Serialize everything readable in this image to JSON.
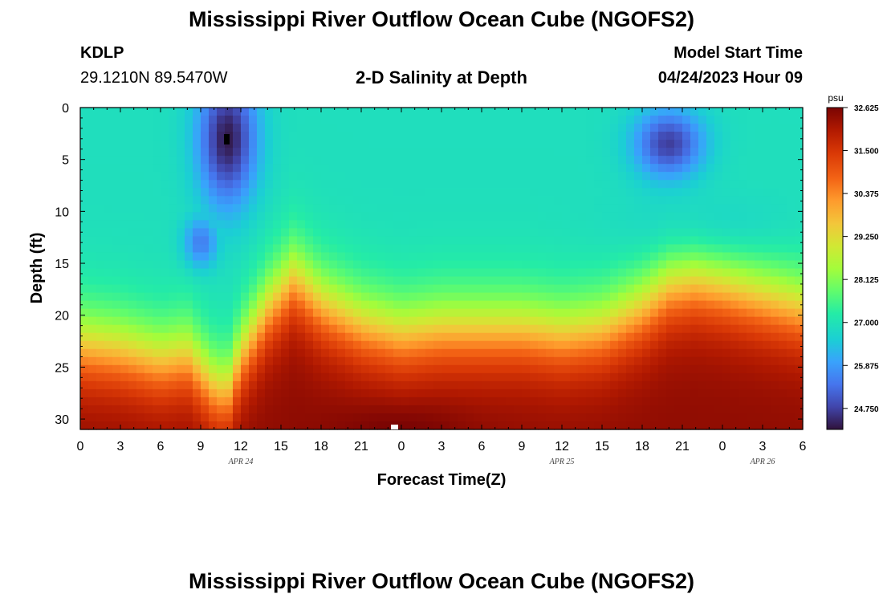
{
  "page": {
    "title": "Mississippi River Outflow Ocean Cube (NGOFS2)",
    "footer_title": "Mississippi River Outflow Ocean Cube (NGOFS2)",
    "station": {
      "id": "KDLP",
      "coords": "29.1210N  89.5470W"
    },
    "plot_subtitle": "2-D Salinity at Depth",
    "model_start": {
      "label": "Model Start Time",
      "value": "04/24/2023 Hour 09"
    }
  },
  "chart_data": {
    "type": "heatmap",
    "title": "2-D Salinity at Depth",
    "xlabel": "Forecast Time(Z)",
    "ylabel": "Depth (ft)",
    "x_range_hours": [
      0,
      54
    ],
    "y_range_ft": [
      0,
      31
    ],
    "x_tick_labels": [
      "0",
      "3",
      "6",
      "9",
      "12",
      "15",
      "18",
      "21",
      "0",
      "3",
      "6",
      "9",
      "12",
      "15",
      "18",
      "21",
      "0",
      "3",
      "6"
    ],
    "y_tick_labels": [
      "0",
      "5",
      "10",
      "15",
      "20",
      "25",
      "30"
    ],
    "y_tick_values": [
      0,
      5,
      10,
      15,
      20,
      25,
      30
    ],
    "date_labels": [
      {
        "text": "APR 24",
        "hour": 12
      },
      {
        "text": "APR 25",
        "hour": 36
      },
      {
        "text": "APR 26",
        "hour": 51
      }
    ],
    "colorbar": {
      "unit": "psu",
      "min": 24.2,
      "max": 32.625,
      "labels": [
        "32.625",
        "31.500",
        "30.375",
        "29.250",
        "28.125",
        "27.000",
        "25.875",
        "24.750"
      ],
      "label_values": [
        32.625,
        31.5,
        30.375,
        29.25,
        28.125,
        27.0,
        25.875,
        24.75
      ]
    },
    "salinity_profile": {
      "x_hours": [
        0,
        3,
        6,
        8,
        10,
        11,
        12,
        14,
        16,
        18,
        21,
        24,
        27,
        30,
        33,
        36,
        39,
        42,
        44,
        46,
        48,
        51,
        54
      ],
      "halocline_depth_ft": [
        23.0,
        23.5,
        24.5,
        24.0,
        27.0,
        27.5,
        24.0,
        19.5,
        16.5,
        19.0,
        21.0,
        22.0,
        21.5,
        21.5,
        21.5,
        22.0,
        21.5,
        19.5,
        17.5,
        17.0,
        17.5,
        18.5,
        19.5
      ],
      "surface_psu": 26.9,
      "bottom_psu": 32.4,
      "fresh_lens": [
        {
          "center_hour": 11,
          "center_depth_ft": 3,
          "min_psu": 24.3
        },
        {
          "center_hour": 44,
          "center_depth_ft": 3.5,
          "min_psu": 24.7
        }
      ]
    }
  }
}
